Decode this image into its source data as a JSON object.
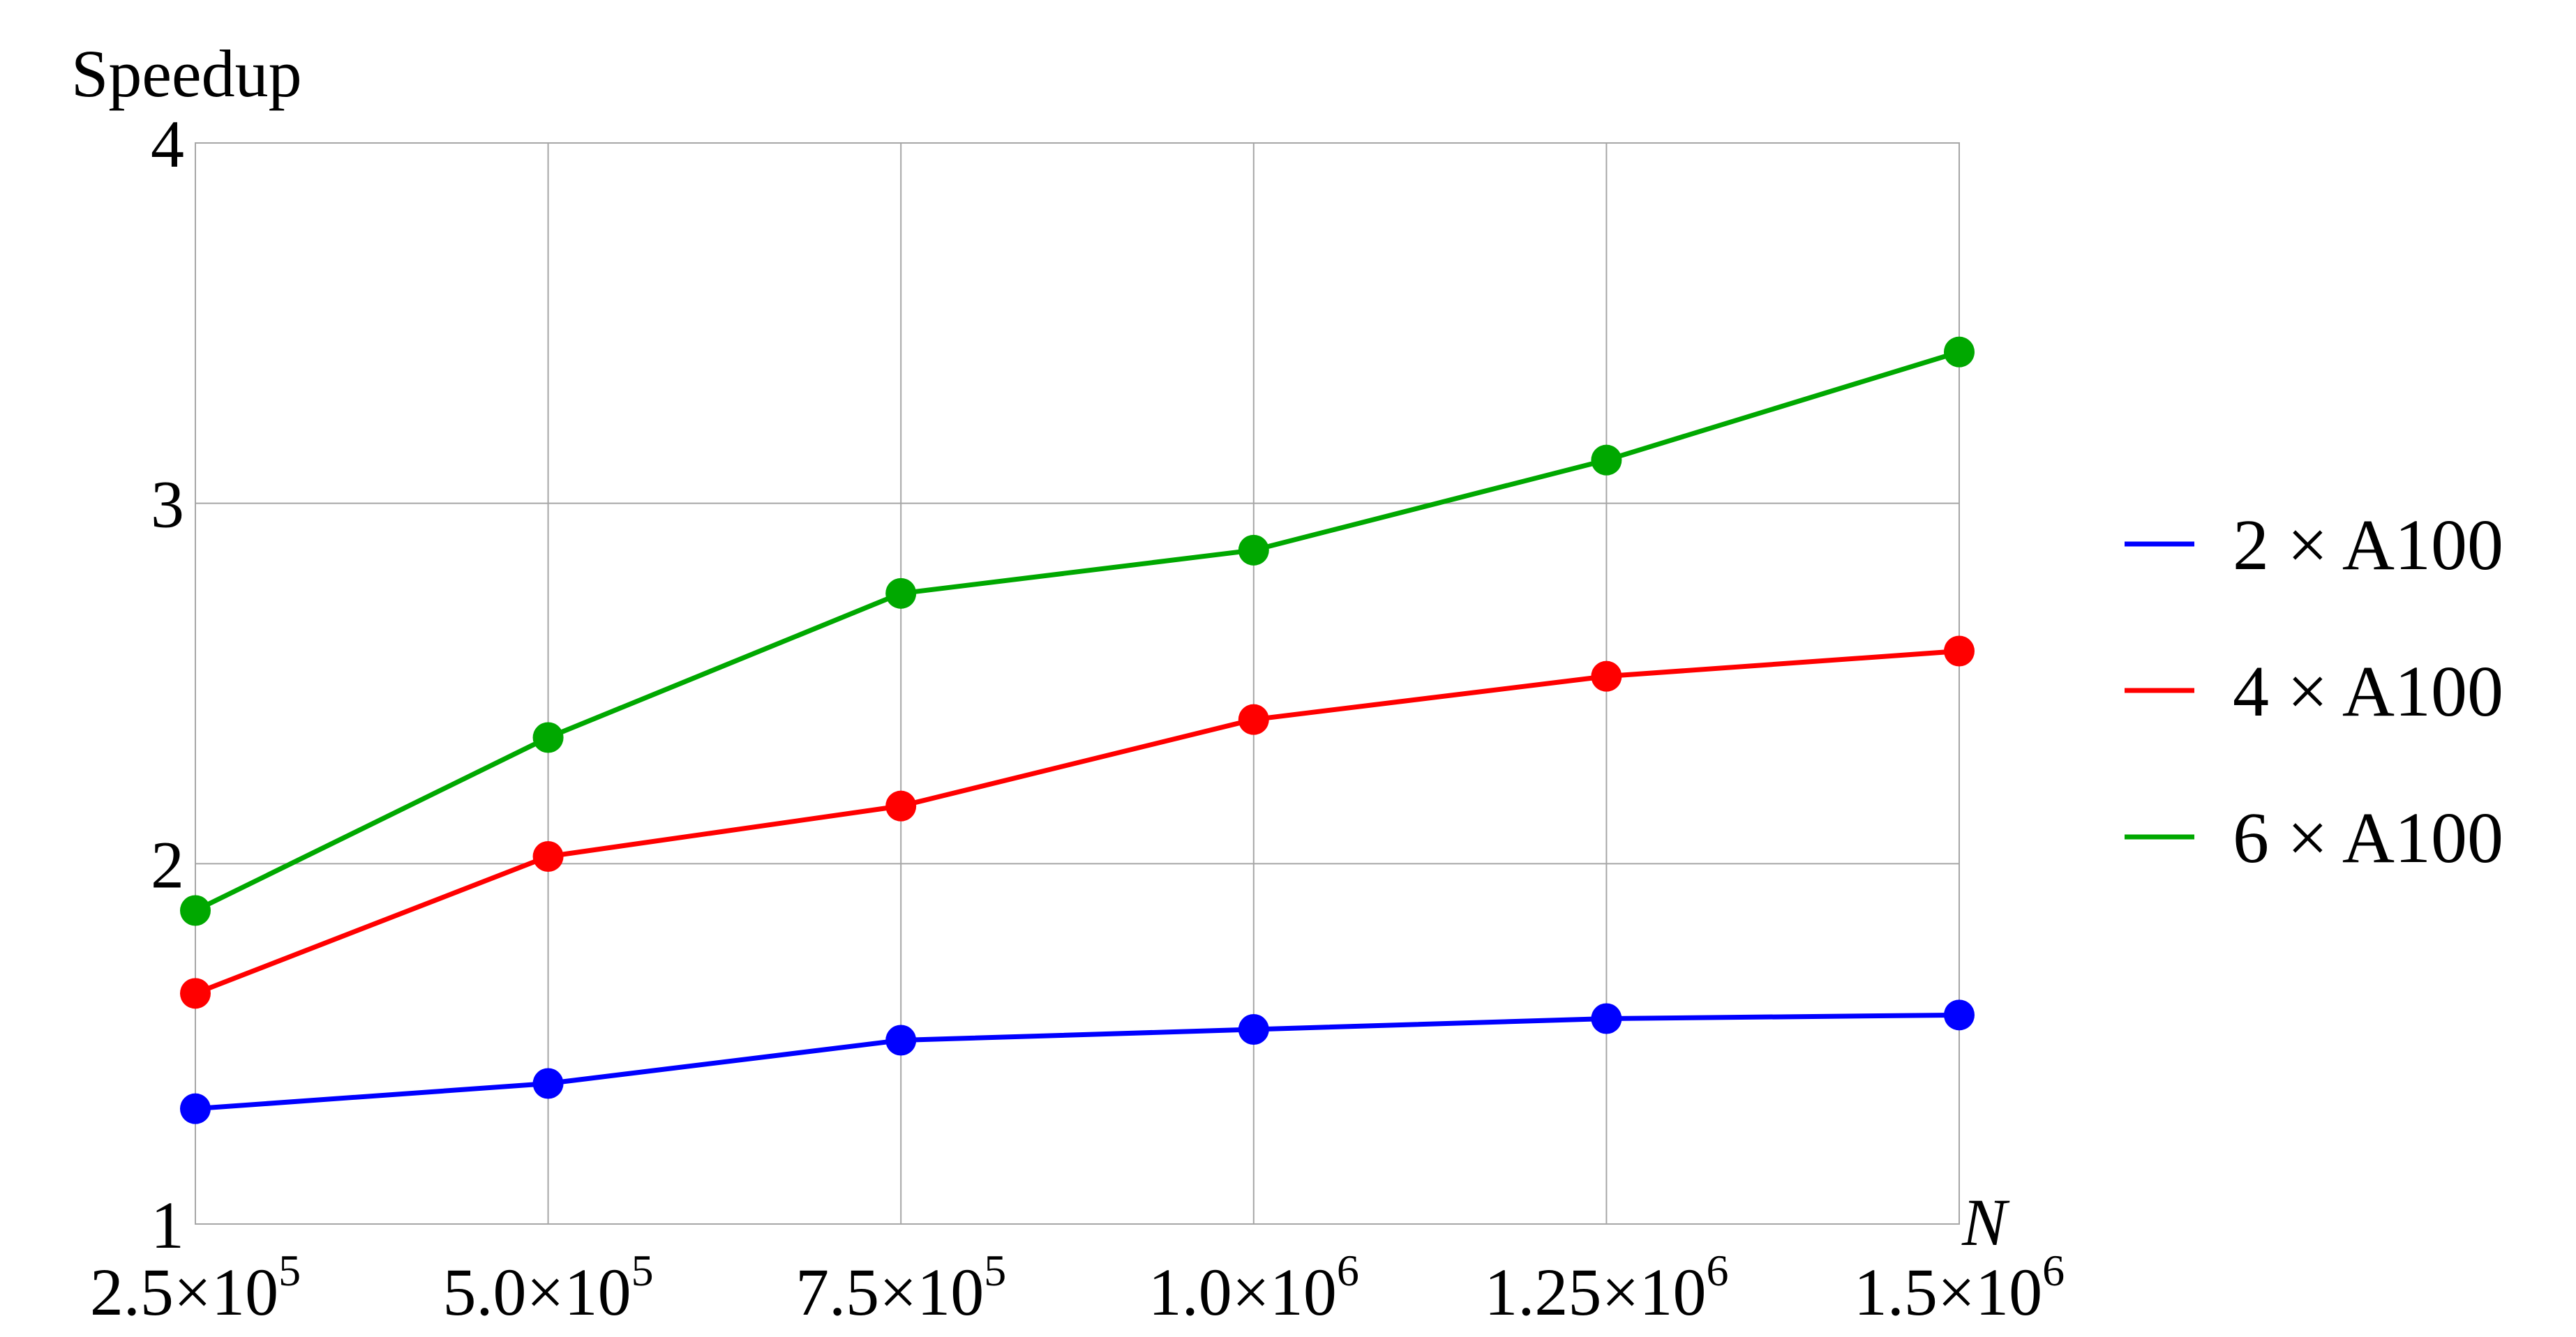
{
  "chart_data": {
    "type": "line",
    "ylabel": "Speedup",
    "xlabel": "N",
    "x": [
      250000,
      500000,
      750000,
      1000000,
      1250000,
      1500000
    ],
    "xtick_labels": [
      {
        "mantissa": "2.5",
        "exp": "5"
      },
      {
        "mantissa": "5.0",
        "exp": "5"
      },
      {
        "mantissa": "7.5",
        "exp": "5"
      },
      {
        "mantissa": "1.0",
        "exp": "6"
      },
      {
        "mantissa": "1.25",
        "exp": "6"
      },
      {
        "mantissa": "1.5",
        "exp": "6"
      }
    ],
    "yticks": [
      1,
      2,
      3,
      4
    ],
    "ytick_labels": [
      "1",
      "2",
      "3",
      "4"
    ],
    "xlim": [
      250000,
      1500000
    ],
    "ylim": [
      1,
      4
    ],
    "grid": true,
    "legend_position": "right",
    "series": [
      {
        "name": "2 × A100",
        "color": "#0000ff",
        "values": [
          1.32,
          1.39,
          1.51,
          1.54,
          1.57,
          1.58
        ]
      },
      {
        "name": "4 × A100",
        "color": "#ff0000",
        "values": [
          1.64,
          2.02,
          2.16,
          2.4,
          2.52,
          2.59
        ]
      },
      {
        "name": "6 × A100",
        "color": "#00a800",
        "values": [
          1.87,
          2.35,
          2.75,
          2.87,
          3.12,
          3.42
        ]
      }
    ]
  }
}
